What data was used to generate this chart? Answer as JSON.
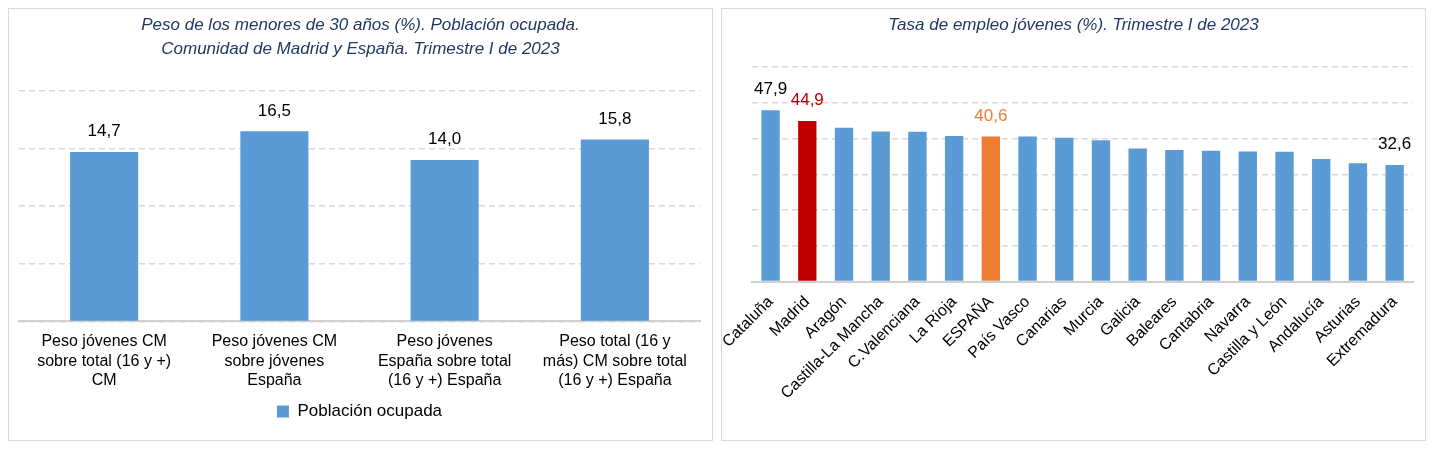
{
  "chart_data": [
    {
      "type": "bar",
      "title": "Peso de los menores de 30 años (%). Población ocupada. Comunidad de Madrid y España. Trimestre I de 2023",
      "categories": [
        "Peso jóvenes CM sobre total (16 y +) CM",
        "Peso jóvenes CM sobre jóvenes España",
        "Peso jóvenes España sobre total (16 y +) España",
        "Peso total (16 y más) CM sobre total (16 y +) España"
      ],
      "series": [
        {
          "name": "Población ocupada",
          "color": "#5b9bd5",
          "values": [
            14.7,
            16.5,
            14.0,
            15.8
          ],
          "value_labels": [
            "14,7",
            "16,5",
            "14,0",
            "15,8"
          ]
        }
      ],
      "ylim": [
        0,
        20
      ],
      "yticks": [
        0,
        5,
        10,
        15,
        20
      ],
      "grid": "y",
      "legend": "bottom",
      "tick_labels": "x"
    },
    {
      "type": "bar",
      "title": "Tasa de empleo jóvenes (%). Trimestre I de 2023",
      "categories": [
        "Cataluña",
        "Madrid",
        "Aragón",
        "Castilla-La Mancha",
        "C.Valenciana",
        "La Rioja",
        "ESPAÑA",
        "País Vasco",
        "Canarias",
        "Murcia",
        "Galicia",
        "Baleares",
        "Cantabria",
        "Navarra",
        "Castilla y León",
        "Andalucía",
        "Asturias",
        "Extremadura"
      ],
      "values": [
        47.9,
        44.9,
        43.0,
        42.0,
        41.9,
        40.7,
        40.6,
        40.6,
        40.2,
        39.5,
        37.2,
        36.8,
        36.6,
        36.4,
        36.3,
        34.3,
        33.1,
        32.6
      ],
      "colors": [
        "#5b9bd5",
        "#c00000",
        "#5b9bd5",
        "#5b9bd5",
        "#5b9bd5",
        "#5b9bd5",
        "#ed7d31",
        "#5b9bd5",
        "#5b9bd5",
        "#5b9bd5",
        "#5b9bd5",
        "#5b9bd5",
        "#5b9bd5",
        "#5b9bd5",
        "#5b9bd5",
        "#5b9bd5",
        "#5b9bd5",
        "#5b9bd5"
      ],
      "value_labels": [
        "47,9",
        "44,9",
        null,
        null,
        null,
        null,
        "40,6",
        null,
        null,
        null,
        null,
        null,
        null,
        null,
        null,
        null,
        null,
        "32,6"
      ],
      "ylim": [
        0,
        60
      ],
      "yticks": [
        0,
        10,
        20,
        30,
        40,
        50,
        60
      ],
      "grid": "y",
      "legend": false,
      "tick_labels": "x"
    }
  ]
}
